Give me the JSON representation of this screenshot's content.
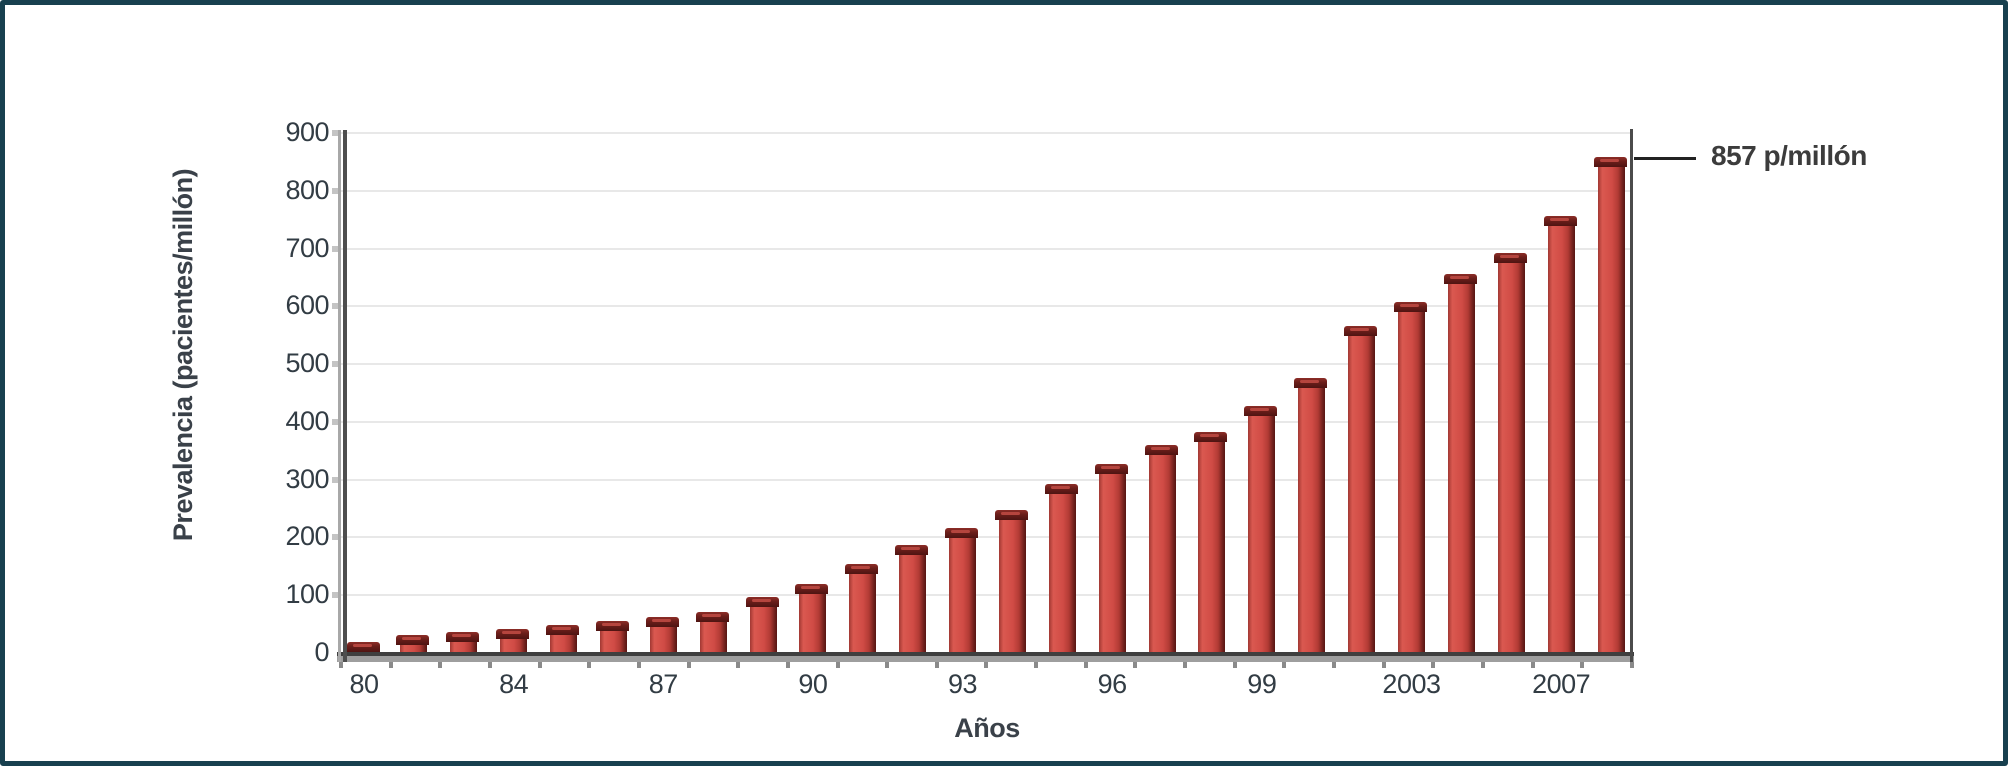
{
  "figure": {
    "border_color": "#18404f",
    "background": "#ffffff"
  },
  "chart_data": {
    "type": "bar",
    "title": "",
    "xlabel": "Años",
    "ylabel": "Prevalencia (pacientes/millón)",
    "ylim": [
      0,
      900
    ],
    "ytick_step": 100,
    "ytick_labels": [
      "0",
      "100",
      "200",
      "300",
      "400",
      "500",
      "600",
      "700",
      "800",
      "900"
    ],
    "grid": "horizontal",
    "legend": "none",
    "categories": [
      "80",
      "",
      "",
      "84",
      "",
      "",
      "87",
      "",
      "",
      "90",
      "",
      "",
      "93",
      "",
      "",
      "96",
      "",
      "",
      "99",
      "",
      "",
      "2003",
      "",
      "",
      "2007",
      ""
    ],
    "values": [
      18,
      30,
      34,
      40,
      46,
      54,
      61,
      70,
      95,
      118,
      153,
      185,
      215,
      245,
      290,
      325,
      358,
      380,
      425,
      475,
      565,
      605,
      655,
      690,
      755,
      857
    ],
    "series_name": "Prevalencia",
    "bar_color": "#d04b45",
    "bar_cap_color": "#5f1b17",
    "annotation": {
      "label": "857 p/millón",
      "value": 857
    }
  }
}
